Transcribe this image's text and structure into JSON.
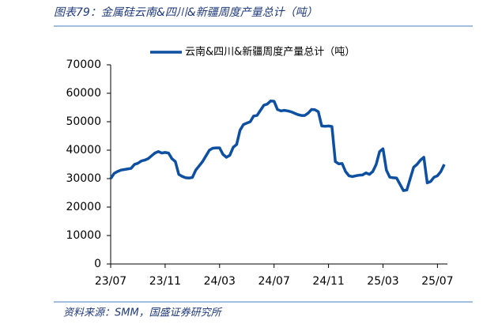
{
  "chart_data": {
    "type": "line",
    "title": "图表79：金属硅云南&四川&新疆周度产量总计（吨）",
    "source": "资料来源：SMM，国盛证券研究所",
    "legend_label": "云南&四川&新疆周度产量总计（吨）",
    "color": "#0d4fa0",
    "categories": [
      "23/07",
      null,
      null,
      null,
      null,
      null,
      null,
      null,
      null,
      null,
      null,
      null,
      null,
      null,
      null,
      null,
      "23/11",
      null,
      null,
      null,
      null,
      null,
      null,
      null,
      null,
      null,
      null,
      null,
      null,
      null,
      null,
      null,
      "24/03",
      null,
      null,
      null,
      null,
      null,
      null,
      null,
      null,
      null,
      null,
      null,
      null,
      null,
      null,
      null,
      "24/07",
      null,
      null,
      null,
      null,
      null,
      null,
      null,
      null,
      null,
      null,
      null,
      null,
      null,
      null,
      null,
      "24/11",
      null,
      null,
      null,
      null,
      null,
      null,
      null,
      null,
      null,
      null,
      null,
      null,
      null,
      null,
      null,
      "25/03",
      null,
      null,
      null,
      null,
      null,
      null,
      null,
      null,
      null,
      null,
      null,
      null,
      null,
      null,
      null,
      "25/07",
      null,
      null
    ],
    "values": [
      30000,
      31800,
      32500,
      33000,
      33200,
      33400,
      33600,
      35000,
      35400,
      36200,
      36500,
      37000,
      38000,
      39000,
      39500,
      39000,
      39200,
      39000,
      37000,
      36000,
      31500,
      30800,
      30300,
      30200,
      30400,
      33000,
      34500,
      36000,
      38000,
      40000,
      40700,
      40800,
      40800,
      38500,
      37500,
      38200,
      41000,
      42000,
      47000,
      49000,
      49500,
      50000,
      52000,
      52200,
      54000,
      55800,
      56200,
      57300,
      57200,
      54300,
      53800,
      54000,
      53800,
      53500,
      53000,
      52500,
      52200,
      52200,
      53000,
      54300,
      54200,
      53500,
      48500,
      48400,
      48500,
      48300,
      36000,
      35200,
      35300,
      32500,
      31000,
      30700,
      31000,
      31200,
      31300,
      32000,
      31500,
      32500,
      35000,
      39500,
      40500,
      33000,
      30500,
      30300,
      30200,
      28000,
      25800,
      26000,
      30000,
      34000,
      35000,
      36500,
      37500,
      28500,
      29000,
      30500,
      31000,
      32500,
      35000
    ],
    "ylim": [
      0,
      70000
    ],
    "yticks": [
      0,
      10000,
      20000,
      30000,
      40000,
      50000,
      60000,
      70000
    ]
  }
}
